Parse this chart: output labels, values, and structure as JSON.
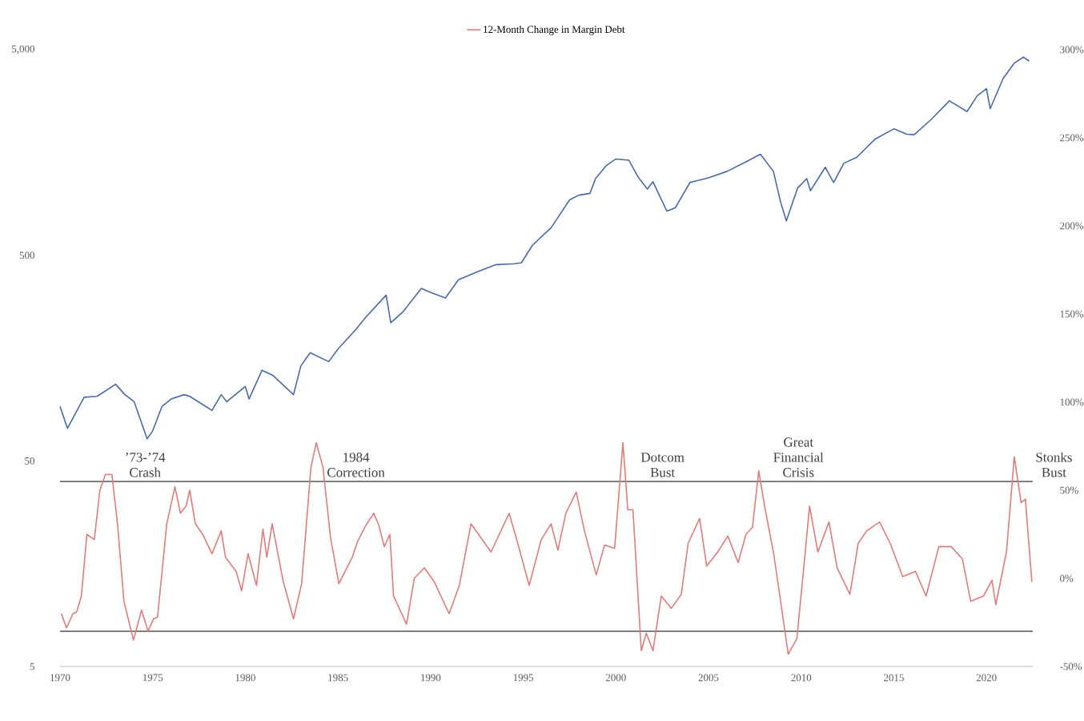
{
  "chart_data": {
    "type": "line",
    "legend": "top",
    "log": "y",
    "xlim": [
      1970,
      2022.5
    ],
    "xticks": [
      1970,
      1975,
      1980,
      1985,
      1990,
      1995,
      2000,
      2005,
      2010,
      2015,
      2020
    ],
    "ylim": [
      5,
      5000
    ],
    "yticks": [
      5,
      50,
      500,
      {
        "value": 5000,
        "label": "5,000"
      }
    ],
    "y2lim": [
      -50,
      300
    ],
    "y2ticks": [
      {
        "value": -50,
        "label": "-50%"
      },
      {
        "value": 0,
        "label": "0%"
      },
      {
        "value": 50,
        "label": "50%"
      },
      {
        "value": 100,
        "label": "100%"
      },
      {
        "value": 150,
        "label": "150%"
      },
      {
        "value": 200,
        "label": "200%"
      },
      {
        "value": 250,
        "label": "250%"
      },
      {
        "value": 300,
        "label": "300%"
      }
    ],
    "series": [
      {
        "color": "#4a6aa5",
        "x": [
          1970.0,
          1970.4,
          1971.3,
          1972.0,
          1973.0,
          1973.5,
          1974.0,
          1974.7,
          1975.0,
          1975.5,
          1976.0,
          1976.7,
          1977.0,
          1978.2,
          1978.7,
          1979.0,
          1980.0,
          1980.2,
          1980.9,
          1981.5,
          1982.6,
          1983.0,
          1983.5,
          1984.5,
          1985.0,
          1986.0,
          1986.5,
          1987.6,
          1987.85,
          1988.5,
          1989.5,
          1990.0,
          1990.8,
          1991.5,
          1992.5,
          1993.5,
          1994.5,
          1994.9,
          1995.5,
          1996.5,
          1997.5,
          1998.0,
          1998.6,
          1998.9,
          1999.5,
          2000.0,
          2000.7,
          2001.2,
          2001.7,
          2002.0,
          2002.75,
          2003.2,
          2004.0,
          2005.0,
          2006.0,
          2007.0,
          2007.8,
          2008.5,
          2008.9,
          2009.2,
          2009.8,
          2010.3,
          2010.5,
          2011.3,
          2011.75,
          2012.3,
          2013.0,
          2014.0,
          2015.0,
          2015.7,
          2016.1,
          2017.0,
          2018.0,
          2018.95,
          2019.5,
          2020.0,
          2020.2,
          2020.9,
          2021.5,
          2022.0,
          2022.3
        ],
        "values": [
          92,
          72,
          102,
          103,
          118,
          105,
          97,
          64,
          70,
          92,
          100,
          105,
          103,
          88,
          105,
          97,
          115,
          100,
          138,
          130,
          105,
          145,
          168,
          152,
          175,
          220,
          250,
          320,
          235,
          265,
          345,
          330,
          310,
          380,
          415,
          450,
          455,
          460,
          560,
          680,
          930,
          980,
          1000,
          1180,
          1370,
          1470,
          1450,
          1200,
          1050,
          1140,
          820,
          850,
          1130,
          1190,
          1280,
          1420,
          1550,
          1280,
          900,
          735,
          1060,
          1180,
          1030,
          1340,
          1130,
          1400,
          1500,
          1840,
          2060,
          1940,
          1930,
          2280,
          2820,
          2500,
          2980,
          3230,
          2580,
          3620,
          4300,
          4600,
          4400
        ]
      },
      {
        "name": "12-Month Change in Margin Debt",
        "color": "#e07b7b",
        "axis": "y2",
        "x": [
          1970.07,
          1970.35,
          1970.7,
          1970.9,
          1971.15,
          1971.45,
          1971.85,
          1972.15,
          1972.45,
          1972.8,
          1973.1,
          1973.45,
          1973.96,
          1974.4,
          1974.75,
          1975.04,
          1975.26,
          1975.76,
          1976.2,
          1976.5,
          1976.8,
          1977.0,
          1977.3,
          1977.7,
          1978.2,
          1978.7,
          1978.93,
          1979.5,
          1979.8,
          1980.15,
          1980.6,
          1980.95,
          1981.16,
          1981.45,
          1982.03,
          1982.6,
          1983.04,
          1983.54,
          1983.83,
          1984.19,
          1984.6,
          1985.05,
          1985.77,
          1986.06,
          1986.5,
          1986.93,
          1987.21,
          1987.5,
          1987.8,
          1988.0,
          1988.7,
          1989.12,
          1989.66,
          1990.2,
          1991.0,
          1991.55,
          1992.18,
          1993.26,
          1994.24,
          1994.7,
          1995.32,
          1995.97,
          1996.5,
          1996.87,
          1997.3,
          1997.86,
          1998.3,
          1998.94,
          1999.39,
          1999.93,
          2000.38,
          2000.64,
          2000.92,
          2001.37,
          2001.64,
          2002.0,
          2002.45,
          2002.99,
          2003.53,
          2003.9,
          2004.52,
          2004.9,
          2005.5,
          2006.04,
          2006.6,
          2007.02,
          2007.37,
          2007.71,
          2008.06,
          2008.5,
          2008.85,
          2009.3,
          2009.77,
          2010.22,
          2010.45,
          2010.9,
          2011.5,
          2011.94,
          2012.63,
          2013.08,
          2013.54,
          2014.23,
          2014.8,
          2015.48,
          2016.17,
          2016.74,
          2017.43,
          2018.1,
          2018.7,
          2019.15,
          2019.84,
          2020.3,
          2020.5,
          2021.08,
          2021.5,
          2021.87,
          2022.1,
          2022.45
        ],
        "values": [
          -20,
          -28,
          -20,
          -19,
          -10,
          25,
          22,
          50,
          59,
          59,
          31,
          -13,
          -35,
          -18,
          -30,
          -23,
          -22,
          31,
          52,
          37,
          41,
          50,
          31,
          25,
          14,
          27,
          12,
          4,
          -7,
          14,
          -4,
          28,
          12,
          31,
          -1,
          -23,
          -3,
          63,
          77,
          63,
          23,
          -3,
          12,
          21,
          30,
          37,
          30,
          18,
          25,
          -10,
          -26,
          0,
          6,
          -2,
          -20,
          -4,
          31,
          15,
          37,
          20,
          -4,
          22,
          31,
          16,
          37,
          49,
          27,
          2,
          19,
          17,
          77,
          39,
          39,
          -41,
          -31,
          -41,
          -10,
          -17,
          -9,
          20,
          34,
          7,
          15,
          24,
          9,
          25,
          29,
          61,
          39,
          15,
          -10,
          -43,
          -34,
          15,
          41,
          15,
          32,
          6,
          -9,
          20,
          27,
          32,
          20,
          1,
          4,
          -10,
          18,
          18,
          11,
          -13,
          -10,
          -1,
          -15,
          15,
          69,
          43,
          45,
          -2
        ]
      }
    ],
    "ref_lines": [
      {
        "axis": "y2",
        "value": 55,
        "color": "#555555"
      },
      {
        "axis": "y2",
        "value": -30,
        "color": "#555555"
      }
    ],
    "annotations": [
      "’73-’74 Crash",
      "1984 Correction",
      "Dotcom Bust",
      "Great Financial Crisis",
      "Stonks Bust"
    ]
  }
}
